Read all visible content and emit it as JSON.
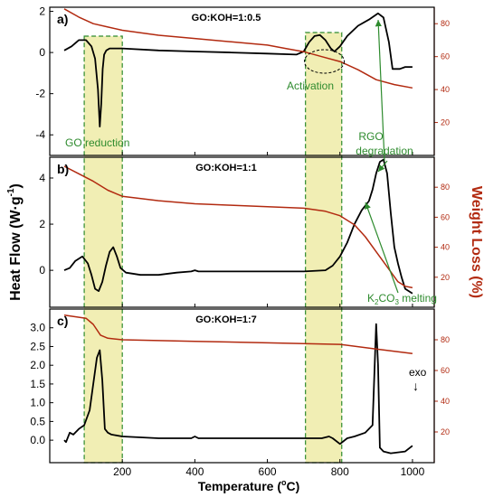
{
  "figure": {
    "ylabel_left": "Heat Flow (W·g⁻¹)",
    "ylabel_left_main": "Heat Flow (W·g",
    "ylabel_left_sup": "-1",
    "ylabel_left_tail": ")",
    "ylabel_right": "Weight Loss (%)",
    "xlabel": "Temperature (°C)",
    "xlabel_main": "Temperature (",
    "xlabel_sup": "o",
    "xlabel_tail": "C)",
    "colors": {
      "heat_flow": "#000000",
      "weight_loss": "#b22a10",
      "right_axis": "#b22a10",
      "highlight_fill": "#f1eeb4",
      "highlight_border": "#2e8b2e",
      "annotation": "#2e8b2e"
    }
  },
  "annotations": {
    "go_reduction": "GO reduction",
    "activation": "Activation",
    "rgo_line1": "RGO",
    "rgo_line2": "degradation",
    "k2co3": "K₂CO₃ melting",
    "k2co3_main": "K",
    "k2co3_sub": "2",
    "k2co3_mid": "CO",
    "k2co3_sub2": "3",
    "k2co3_tail": " melting",
    "exo": "exo",
    "exo_arrow": "↓"
  },
  "highlight_bands": [
    {
      "label": "GO reduction",
      "x": [
        95,
        200
      ]
    },
    {
      "label": "Activation",
      "x": [
        705,
        805
      ]
    }
  ],
  "chart_data": [
    {
      "type": "line",
      "panel": "a)",
      "title": "GO:KOH=1:0.5",
      "xlim": [
        0,
        1060
      ],
      "xticks": [
        200,
        400,
        600,
        800,
        1000
      ],
      "ylim_left": [
        -5,
        2.2
      ],
      "yticks_left": [
        -4,
        -2,
        0,
        2
      ],
      "ylim_right": [
        0,
        90
      ],
      "yticks_right": [
        20,
        40,
        60,
        80
      ],
      "series": [
        {
          "axis": "left",
          "x": [
            40,
            60,
            80,
            100,
            115,
            125,
            133,
            138,
            142,
            146,
            150,
            156,
            165,
            180,
            200,
            300,
            400,
            500,
            600,
            680,
            700,
            715,
            730,
            745,
            760,
            775,
            785,
            800,
            820,
            850,
            880,
            905,
            920,
            935,
            945,
            955,
            965,
            980,
            1000
          ],
          "values": [
            0.1,
            0.3,
            0.6,
            0.6,
            0.3,
            -0.3,
            -1.8,
            -3.6,
            -2.5,
            -0.8,
            -0.1,
            0.1,
            0.2,
            0.2,
            0.2,
            0.1,
            0.05,
            0.0,
            -0.05,
            -0.1,
            0.05,
            0.5,
            0.8,
            0.85,
            0.6,
            0.2,
            0.05,
            0.3,
            0.8,
            1.3,
            1.6,
            1.9,
            1.7,
            0.5,
            -0.8,
            -0.8,
            -0.8,
            -0.7,
            -0.7
          ]
        },
        {
          "axis": "right",
          "x": [
            40,
            80,
            120,
            160,
            200,
            300,
            400,
            500,
            600,
            650,
            700,
            750,
            800,
            850,
            900,
            950,
            1000
          ],
          "values": [
            89,
            84,
            80,
            78,
            76,
            73,
            71,
            69,
            67,
            65,
            63,
            60,
            57,
            52,
            46,
            43,
            41
          ]
        }
      ]
    },
    {
      "type": "line",
      "panel": "b)",
      "title": "GO:KOH=1:1",
      "xlim": [
        0,
        1060
      ],
      "xticks": [
        200,
        400,
        600,
        800,
        1000
      ],
      "ylim_left": [
        -1.6,
        4.9
      ],
      "yticks_left": [
        0,
        2,
        4
      ],
      "ylim_right": [
        0,
        100
      ],
      "yticks_right": [
        20,
        40,
        60,
        80
      ],
      "series": [
        {
          "axis": "left",
          "x": [
            40,
            55,
            70,
            90,
            105,
            115,
            125,
            135,
            145,
            155,
            165,
            175,
            185,
            195,
            210,
            250,
            300,
            350,
            390,
            400,
            410,
            500,
            600,
            700,
            760,
            780,
            800,
            820,
            840,
            860,
            880,
            890,
            900,
            910,
            920,
            930,
            940,
            950,
            960,
            970,
            980,
            1000
          ],
          "values": [
            0.0,
            0.1,
            0.4,
            0.6,
            0.3,
            -0.2,
            -0.8,
            -0.9,
            -0.5,
            0.2,
            0.8,
            1.0,
            0.6,
            0.1,
            -0.1,
            -0.2,
            -0.2,
            -0.1,
            -0.05,
            0.0,
            -0.05,
            -0.05,
            -0.05,
            -0.05,
            0.0,
            0.2,
            0.6,
            1.2,
            2.0,
            2.6,
            3.0,
            3.5,
            4.2,
            4.7,
            4.8,
            4.2,
            2.5,
            1.0,
            0.3,
            -0.3,
            -0.8,
            -1.0
          ]
        },
        {
          "axis": "right",
          "x": [
            40,
            80,
            120,
            160,
            200,
            300,
            400,
            500,
            600,
            700,
            760,
            800,
            840,
            870,
            900,
            930,
            960,
            980,
            1000
          ],
          "values": [
            94,
            89,
            84,
            78,
            74,
            71,
            69,
            68,
            67,
            66,
            64,
            61,
            55,
            47,
            37,
            27,
            17,
            14,
            13
          ]
        }
      ]
    },
    {
      "type": "line",
      "panel": "c)",
      "title": "GO:KOH=1:7",
      "xlim": [
        0,
        1060
      ],
      "xticks": [
        200,
        400,
        600,
        800,
        1000
      ],
      "ylim_left": [
        -0.6,
        3.5
      ],
      "yticks_left": [
        0.0,
        0.5,
        1.0,
        1.5,
        2.0,
        2.5,
        3.0
      ],
      "ylim_right": [
        0,
        100
      ],
      "yticks_right": [
        20,
        40,
        60,
        80
      ],
      "series": [
        {
          "axis": "left",
          "x": [
            40,
            45,
            55,
            65,
            80,
            95,
            110,
            120,
            130,
            138,
            145,
            152,
            160,
            170,
            200,
            300,
            390,
            400,
            410,
            500,
            600,
            700,
            750,
            770,
            780,
            800,
            820,
            840,
            870,
            890,
            900,
            905,
            910,
            920,
            940,
            980,
            1000
          ],
          "values": [
            0.0,
            -0.05,
            0.2,
            0.15,
            0.3,
            0.4,
            0.8,
            1.5,
            2.2,
            2.4,
            1.6,
            0.3,
            0.2,
            0.15,
            0.1,
            0.05,
            0.05,
            0.1,
            0.05,
            0.05,
            0.05,
            0.05,
            0.05,
            0.1,
            0.05,
            -0.1,
            0.05,
            0.1,
            0.2,
            0.4,
            3.1,
            2.0,
            -0.2,
            -0.3,
            -0.35,
            -0.3,
            -0.15
          ]
        },
        {
          "axis": "right",
          "x": [
            40,
            100,
            120,
            140,
            160,
            200,
            400,
            600,
            800,
            900,
            1000
          ],
          "values": [
            96,
            94,
            90,
            83,
            81,
            80,
            79,
            78,
            77,
            74,
            71
          ]
        }
      ]
    }
  ]
}
